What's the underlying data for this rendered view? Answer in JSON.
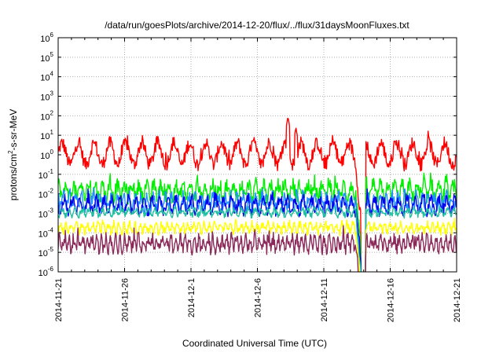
{
  "chart_data": {
    "type": "line",
    "title": "/data/run/goesPlots/archive/2014-12-20/flux/../flux/31daysMoonFluxes.txt",
    "xlabel": "Coordinated Universal Time (UTC)",
    "ylabel_base": "protons/cm",
    "ylabel_sup": "2",
    "ylabel_rest": "-s-sr-MeV",
    "x_ticks": [
      "2014-11-21",
      "2014-11-26",
      "2014-12-1",
      "2014-12-6",
      "2014-12-11",
      "2014-12-16",
      "2014-12-21"
    ],
    "y_ticks": [
      {
        "base": "10",
        "exp": "-6"
      },
      {
        "base": "10",
        "exp": "-5"
      },
      {
        "base": "10",
        "exp": "-4"
      },
      {
        "base": "10",
        "exp": "-3"
      },
      {
        "base": "10",
        "exp": "-2"
      },
      {
        "base": "10",
        "exp": "-1"
      },
      {
        "base": "10",
        "exp": "0"
      },
      {
        "base": "10",
        "exp": "1"
      },
      {
        "base": "10",
        "exp": "2"
      },
      {
        "base": "10",
        "exp": "3"
      },
      {
        "base": "10",
        "exp": "4"
      },
      {
        "base": "10",
        "exp": "5"
      },
      {
        "base": "10",
        "exp": "6"
      }
    ],
    "x_range_days": [
      0,
      30
    ],
    "y_log_range": [
      -6,
      6
    ],
    "y_scale": "log",
    "grid": true,
    "series": [
      {
        "color": "#ff0000",
        "base_log": 0.05,
        "amp": 0.55,
        "noise": 0.35,
        "period": 1.2,
        "spike": [
          [
            17.3,
            1.95
          ],
          [
            17.9,
            1.4
          ]
        ]
      },
      {
        "color": "#00ee00",
        "base_log": -1.85,
        "amp": 0.35,
        "noise": 0.35,
        "period": 0.55,
        "spike": []
      },
      {
        "color": "#1e90ff",
        "base_log": -2.4,
        "amp": 0.3,
        "noise": 0.3,
        "period": 0.45,
        "spike": []
      },
      {
        "color": "#0000ee",
        "base_log": -2.6,
        "amp": 0.35,
        "noise": 0.25,
        "period": 0.6,
        "spike": []
      },
      {
        "color": "#20c0a0",
        "base_log": -2.95,
        "amp": 0.15,
        "noise": 0.15,
        "period": 0.5,
        "spike": []
      },
      {
        "color": "#ffff00",
        "base_log": -3.75,
        "amp": 0.2,
        "noise": 0.2,
        "period": 0.4,
        "spike": []
      },
      {
        "color": "#8b2a5a",
        "base_log": -4.55,
        "amp": 0.3,
        "noise": 0.3,
        "period": 0.35,
        "spike": []
      }
    ],
    "dropout_day": 22.8,
    "recovery_day": 23.5
  }
}
